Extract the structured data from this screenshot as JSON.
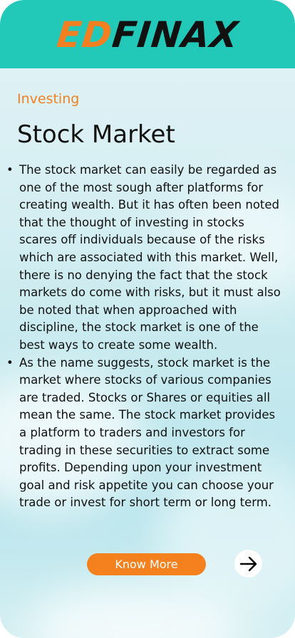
{
  "brand": {
    "logo_part1": "ED",
    "logo_part2": "FINAX",
    "header_color": "#22c9b8",
    "accent_color": "#f47f20"
  },
  "article": {
    "category": "Investing",
    "title": "Stock Market",
    "bullets": [
      "The stock market can easily be regarded as one of the most sough after platforms for creating wealth. But it has often been noted that the thought of investing in stocks scares off individuals because of the risks which are associated with this market. Well, there is no denying the fact that the stock markets do come with risks, but it must also be noted that when approached with discipline, the stock market is one of the best ways to create some wealth.",
      "As the name suggests, stock market is the market where stocks of various companies are traded. Stocks or Shares or equities all mean the same. The stock market provides a platform to traders and investors for trading in these securities to extract some profits. Depending upon your investment goal and risk appetite you can choose your trade or invest for short term or long term."
    ],
    "bullet_glyph": "•"
  },
  "actions": {
    "know_more_label": "Know More",
    "next_icon": "arrow-right-icon"
  }
}
